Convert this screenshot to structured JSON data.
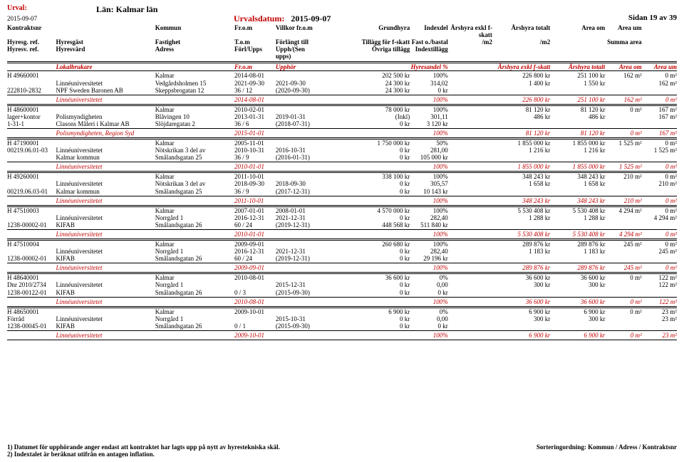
{
  "page": {
    "urval_label": "Urval:",
    "lan": "Län: Kalmar län",
    "date": "2015-09-07",
    "urvalsdatum_label": "Urvalsdatum:",
    "urvalsdatum": "2015-09-07",
    "sidan": "Sidan 19 av 39"
  },
  "hdr": {
    "r1": [
      "Kontraktsnr",
      "",
      "Kommun",
      "Fr.o.m",
      "Villkor fr.o.m",
      "Grundhyra",
      "",
      "Indexdel",
      "Årshyra exkl f-skatt",
      "Årshyra totalt",
      "Area om",
      "Area um"
    ],
    "r2": [
      "Hyresg. ref.",
      "Hyresgäst",
      "Fastighet",
      "T.o.m",
      "Förlängt till",
      "Tillägg för f-skatt",
      "",
      "Fast o./bastal",
      "/m2",
      "/m2",
      "",
      "Summa area"
    ],
    "r3": [
      "Hyresv. ref.",
      "Hyresvärd",
      "Adress",
      "Förl/Upps",
      "Upph/(Sen upps)",
      "Övriga tillägg",
      "",
      "Indextillägg",
      "",
      "",
      "",
      ""
    ],
    "r4_1": "Lokalbrukare",
    "r4_2": "Fr.o.m",
    "r4_3": "Upphör",
    "r4_4": "Hyresandel %",
    "r4_5": "Årshyra exkl f-skatt",
    "r4_6": "Årshyra totalt",
    "r4_7": "Area om",
    "r4_8": "Area um"
  },
  "blocks": [
    {
      "rows": [
        [
          "H 49660001",
          "",
          "Kalmar",
          "2014-08-01",
          "",
          "",
          "202 500 kr",
          "100%",
          "226 800 kr",
          "251 100 kr",
          "162 m²",
          "0 m²"
        ],
        [
          "",
          "Linnéuniversitetet",
          "Vedgårdsholmen 15",
          "2021-09-30",
          "2021-09-30",
          "",
          "24 300 kr",
          "314,02",
          "1 400 kr",
          "1 550 kr",
          "",
          "162 m²"
        ],
        [
          "222810-2832",
          "NPF Sweden Baronen AB",
          "Skeppsbrogatan 12",
          "36 / 12",
          "(2020-09-30)",
          "",
          "24 300 kr",
          "0 kr",
          "",
          "",
          "",
          ""
        ]
      ],
      "summary": [
        "",
        "Linnéuniversitetet",
        "",
        "2014-08-01",
        "",
        "",
        "",
        "100%",
        "226 800 kr",
        "251 100 kr",
        "162 m²",
        "0 m²"
      ]
    },
    {
      "rows": [
        [
          "H 48600001",
          "",
          "Kalmar",
          "2010-02-01",
          "",
          "",
          "78 000 kr",
          "100%",
          "81 120 kr",
          "81 120 kr",
          "0 m²",
          "167 m²"
        ],
        [
          "lager+kontor",
          "Polismyndigheten",
          "Blåvingen 10",
          "2013-01-31",
          "2019-01-31",
          "",
          "(Inkl)",
          "301,11",
          "486 kr",
          "486 kr",
          "",
          "167 m²"
        ],
        [
          "1-31-1",
          "Clasons Måleri i Kalmar AB",
          "Slöjdaregatan 2",
          "36 / 6",
          "(2018-07-31)",
          "",
          "0 kr",
          "3 120 kr",
          "",
          "",
          "",
          ""
        ]
      ],
      "summary": [
        "",
        "Polismyndigheten, Region Syd",
        "",
        "2015-01-01",
        "",
        "",
        "",
        "100%",
        "81 120 kr",
        "81 120 kr",
        "0 m²",
        "167 m²"
      ]
    },
    {
      "rows": [
        [
          "H 47190001",
          "",
          "Kalmar",
          "2005-11-01",
          "",
          "",
          "1 750 000 kr",
          "50%",
          "1 855 000 kr",
          "1 855 000 kr",
          "1 525 m²",
          "0 m²"
        ],
        [
          "00219.06.01-03",
          "Linnéuniversitetet",
          "Nötskrikan 3 del av",
          "2010-10-31",
          "2016-10-31",
          "",
          "0 kr",
          "281,00",
          "1 216 kr",
          "1 216 kr",
          "",
          "1 525 m²"
        ],
        [
          "",
          "Kalmar kommun",
          "Smålandsgatan 25",
          "36 / 9",
          "(2016-01-31)",
          "",
          "0 kr",
          "105 000 kr",
          "",
          "",
          "",
          ""
        ]
      ],
      "summary": [
        "",
        "Linnéuniversitetet",
        "",
        "2010-01-01",
        "",
        "",
        "",
        "100%",
        "1 855 000 kr",
        "1 855 000 kr",
        "1 525 m²",
        "0 m²"
      ]
    },
    {
      "rows": [
        [
          "H 49260001",
          "",
          "Kalmar",
          "2011-10-01",
          "",
          "",
          "338 100 kr",
          "100%",
          "348 243 kr",
          "348 243 kr",
          "210 m²",
          "0 m²"
        ],
        [
          "",
          "Linnéuniversitetet",
          "Nötskrikan 3 del av",
          "2018-09-30",
          "2018-09-30",
          "",
          "0 kr",
          "305,57",
          "1 658 kr",
          "1 658 kr",
          "",
          "210 m²"
        ],
        [
          "00219.06.03-01",
          "Kalmar kommun",
          "Smålandsgatan 25",
          "36 / 9",
          "(2017-12-31)",
          "",
          "0 kr",
          "10 143 kr",
          "",
          "",
          "",
          ""
        ]
      ],
      "summary": [
        "",
        "Linnéuniversitetet",
        "",
        "2011-10-01",
        "",
        "",
        "",
        "100%",
        "348 243 kr",
        "348 243 kr",
        "210 m²",
        "0 m²"
      ]
    },
    {
      "rows": [
        [
          "H 47510003",
          "",
          "Kalmar",
          "2007-01-01",
          "2008-01-01",
          "",
          "4 570 000 kr",
          "100%",
          "5 530 408 kr",
          "5 530 408 kr",
          "4 294 m²",
          "0 m²"
        ],
        [
          "",
          "Linnéuniversitetet",
          "Norrgård 1",
          "2016-12-31",
          "2021-12-31",
          "",
          "0 kr",
          "282,40",
          "1 288 kr",
          "1 288 kr",
          "",
          "4 294 m²"
        ],
        [
          "1238-00002-01",
          "KIFAB",
          "Smålandsgatan 26",
          "60 / 24",
          "(2019-12-31)",
          "",
          "448 568 kr",
          "511 840 kr",
          "",
          "",
          "",
          ""
        ]
      ],
      "summary": [
        "",
        "Linnéuniversitetet",
        "",
        "2010-01-01",
        "",
        "",
        "",
        "100%",
        "5 530 408 kr",
        "5 530 408 kr",
        "4 294 m²",
        "0 m²"
      ]
    },
    {
      "rows": [
        [
          "H 47510004",
          "",
          "Kalmar",
          "2009-09-01",
          "",
          "",
          "260 680 kr",
          "100%",
          "289 876 kr",
          "289 876 kr",
          "245 m²",
          "0 m²"
        ],
        [
          "",
          "Linnéuniversitetet",
          "Norrgård 1",
          "2016-12-31",
          "2021-12-31",
          "",
          "0 kr",
          "282,40",
          "1 183 kr",
          "1 183 kr",
          "",
          "245 m²"
        ],
        [
          "1238-00002-01",
          "KIFAB",
          "Smålandsgatan 26",
          "60 / 24",
          "(2019-12-31)",
          "",
          "0 kr",
          "29 196 kr",
          "",
          "",
          "",
          ""
        ]
      ],
      "summary": [
        "",
        "Linnéuniversitetet",
        "",
        "2009-09-01",
        "",
        "",
        "",
        "100%",
        "289 876 kr",
        "289 876 kr",
        "245 m²",
        "0 m²"
      ]
    },
    {
      "rows": [
        [
          "H 48640001",
          "",
          "Kalmar",
          "2010-08-01",
          "",
          "",
          "36 600 kr",
          "0%",
          "36 600 kr",
          "36 600 kr",
          "0 m²",
          "122 m²"
        ],
        [
          "Dnr 2010/2734",
          "Linnéuniversitetet",
          "Norrgård 1",
          "",
          "2015-12-31",
          "",
          "0 kr",
          "0,00",
          "300 kr",
          "300 kr",
          "",
          "122 m²"
        ],
        [
          "1238-00122-01",
          "KIFAB",
          "Smålandsgatan 26",
          "0 / 3",
          "(2015-09-30)",
          "",
          "0 kr",
          "0 kr",
          "",
          "",
          "",
          ""
        ]
      ],
      "summary": [
        "",
        "Linnéuniversitetet",
        "",
        "2010-08-01",
        "",
        "",
        "",
        "100%",
        "36 600 kr",
        "36 600 kr",
        "0 m²",
        "122 m²"
      ]
    },
    {
      "rows": [
        [
          "H 48650001",
          "",
          "Kalmar",
          "2009-10-01",
          "",
          "",
          "6 900 kr",
          "0%",
          "6 900 kr",
          "6 900 kr",
          "0 m²",
          "23 m²"
        ],
        [
          "Förråd",
          "Linnéuniversitetet",
          "Norrgård 1",
          "",
          "2015-10-31",
          "",
          "0 kr",
          "0,00",
          "300 kr",
          "300 kr",
          "",
          "23 m²"
        ],
        [
          "1238-00045-01",
          "KIFAB",
          "Smålandsgatan 26",
          "0 / 1",
          "(2015-09-30)",
          "",
          "0 kr",
          "0 kr",
          "",
          "",
          "",
          ""
        ]
      ],
      "summary": [
        "",
        "Linnéuniversitetet",
        "",
        "2009-10-01",
        "",
        "",
        "",
        "100%",
        "6 900 kr",
        "6 900 kr",
        "0 m²",
        "23 m²"
      ]
    }
  ],
  "footer": {
    "l1": "1) Datumet för upphörande anger endast att kontraktet har lagts upp på nytt av hyrestekniska skäl.",
    "l2": "2) Indextalet är beräknat utifrån en antagen inflation.",
    "sort": "Sorteringordning: Kommun / Adress / Kontraktsnr"
  }
}
